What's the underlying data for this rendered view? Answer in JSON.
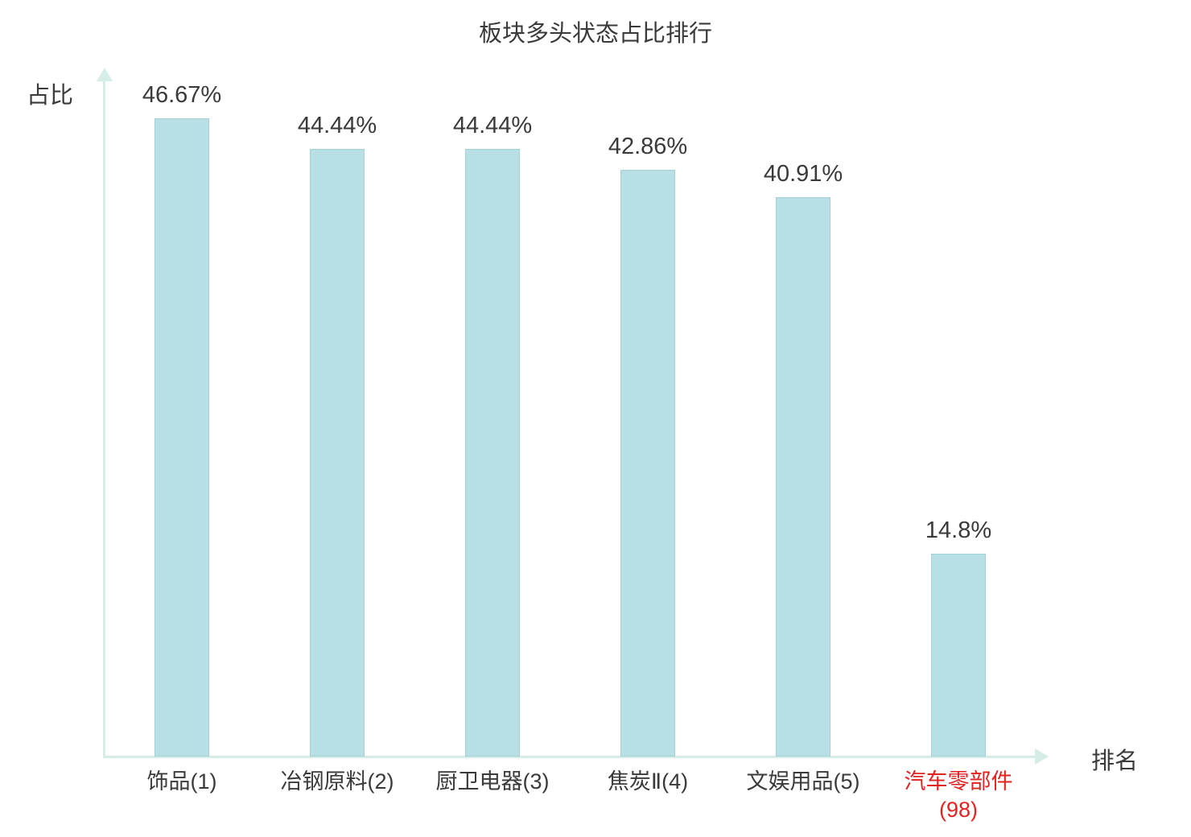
{
  "chart_data": {
    "type": "bar",
    "title": "板块多头状态占比排行",
    "xlabel": "排名",
    "ylabel": "占比",
    "categories": [
      "饰品(1)",
      "冶钢原料(2)",
      "厨卫电器(3)",
      "焦炭Ⅱ(4)",
      "文娱用品(5)",
      "汽车零部件(98)"
    ],
    "values": [
      46.67,
      44.44,
      44.44,
      42.86,
      40.91,
      14.8
    ],
    "value_labels": [
      "46.67%",
      "44.44%",
      "44.44%",
      "42.86%",
      "40.91%",
      "14.8%"
    ],
    "ylim": [
      0,
      50
    ],
    "legend": "none",
    "grid": "off",
    "highlight_index": 5,
    "colors": {
      "bar_fill": "#b8dfe4",
      "bar_border": "#a2d1d9",
      "axis": "#d5ece7",
      "text": "#3a3a3a",
      "highlight_text": "#e32222"
    }
  }
}
